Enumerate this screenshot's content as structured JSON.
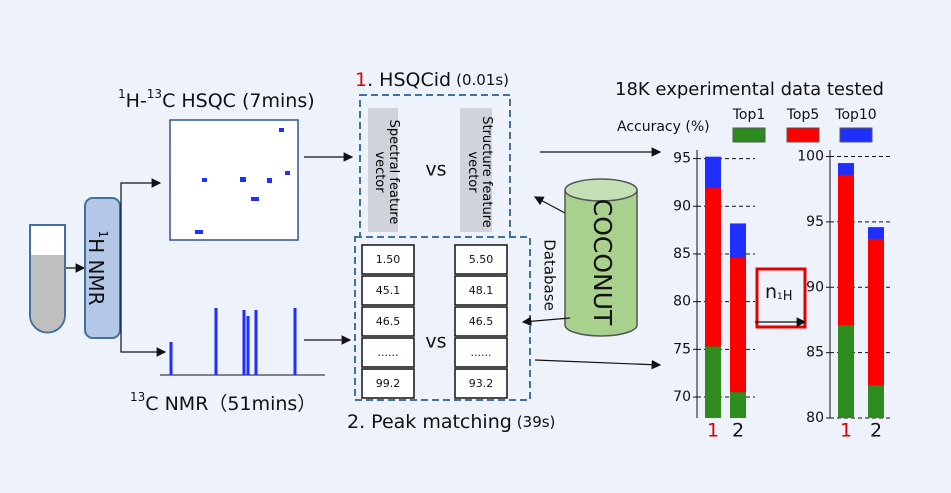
{
  "hsqc_label": {
    "sup1": "1",
    "text1": "H-",
    "sup2": "13",
    "text2": "C HSQC (7mins)"
  },
  "nmr13c_label": {
    "sup": "13",
    "text": "C NMR（51mins）"
  },
  "h1nmr_box": {
    "sup": "1",
    "text": "H NMR"
  },
  "step1": {
    "number": "1",
    "text": ". HSQCid",
    "time": "(0.01s)"
  },
  "spectral_vector": "Spectral feature vector",
  "vs1": "vs",
  "structure_vector": "Structure feature vector",
  "database": {
    "name": "COCONUT",
    "label": "Database"
  },
  "peaks": {
    "query": [
      "1.50",
      "45.1",
      "46.5",
      "......",
      "99.2"
    ],
    "candidate": [
      "5.50",
      "48.1",
      "46.5",
      "......",
      "93.2"
    ],
    "vs": "vs"
  },
  "step2": {
    "text": "2. Peak matching",
    "time": "(39s)"
  },
  "results": {
    "title": "18K experimental data tested",
    "axis_label": "Accuracy (%)",
    "annotation": {
      "n": "n",
      "sub1": "1",
      "sub2": "H"
    },
    "charts": [
      {
        "type": "bar",
        "categories": [
          "1",
          "2"
        ],
        "category_colors": [
          "#e00000",
          "#111111"
        ],
        "series": [
          {
            "name": "Top1",
            "color": "#2e8b1e",
            "values": [
              75.3,
              70.5
            ]
          },
          {
            "name": "Top5",
            "color": "#ff0000",
            "values": [
              91.9,
              84.6
            ]
          },
          {
            "name": "Top10",
            "color": "#1f2fff",
            "values": [
              95.2,
              88.2
            ]
          }
        ],
        "ylim": [
          67.8,
          95.9
        ],
        "yticks": [
          70,
          75,
          80,
          85,
          90,
          95
        ],
        "grid": true
      },
      {
        "type": "bar",
        "categories": [
          "1",
          "2"
        ],
        "category_colors": [
          "#e00000",
          "#111111"
        ],
        "series": [
          {
            "color": "#2e8b1e",
            "values": [
              87.1,
              82.5
            ]
          },
          {
            "color": "#ff0000",
            "values": [
              98.6,
              93.7
            ]
          },
          {
            "color": "#1f2fff",
            "values": [
              99.5,
              94.6
            ]
          }
        ],
        "ylim": [
          80,
          100.5
        ],
        "yticks": [
          80,
          85,
          90,
          95,
          100
        ],
        "grid": true
      }
    ]
  }
}
